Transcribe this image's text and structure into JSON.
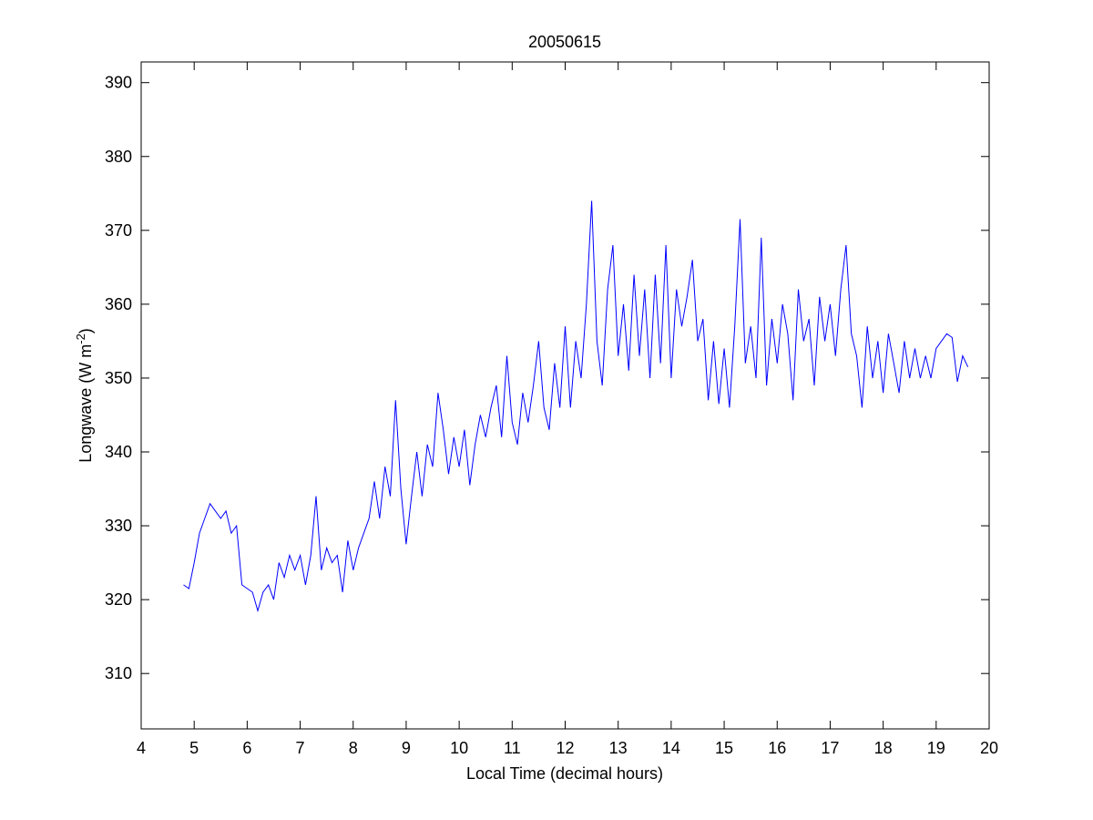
{
  "chart_data": {
    "type": "line",
    "title": "20050615",
    "xlabel": "Local Time (decimal hours)",
    "ylabel_main": "Longwave (W m",
    "ylabel_sup": "-2",
    "ylabel_close": ")",
    "xlim": [
      4,
      20
    ],
    "ylim": [
      302.5,
      392.8
    ],
    "xticks": [
      "4",
      "5",
      "6",
      "7",
      "8",
      "9",
      "10",
      "11",
      "12",
      "13",
      "14",
      "15",
      "16",
      "17",
      "18",
      "19",
      "20"
    ],
    "yticks": [
      "310",
      "320",
      "330",
      "340",
      "350",
      "360",
      "370",
      "380",
      "390"
    ],
    "grid": false,
    "series": [
      {
        "name": "longwave",
        "color": "#0000ff",
        "x_start": 4.8,
        "x_step": 0.1,
        "values": [
          322,
          321.5,
          325,
          329,
          331,
          333,
          332,
          331,
          332,
          329,
          330,
          322,
          321.5,
          321,
          318.5,
          321,
          322,
          320,
          325,
          323,
          326,
          324,
          326,
          322,
          326,
          334,
          324,
          327,
          325,
          326,
          321,
          328,
          324,
          327,
          329,
          331,
          336,
          331,
          338,
          334,
          347,
          335,
          327.5,
          334,
          340,
          334,
          341,
          338,
          348,
          343,
          337,
          342,
          338,
          343,
          335.5,
          341,
          345,
          342,
          346,
          349,
          342,
          353,
          344,
          341,
          348,
          344,
          349,
          355,
          346,
          343,
          352,
          346,
          357,
          346,
          355,
          350,
          360,
          374,
          355,
          349,
          362,
          368,
          353,
          360,
          351,
          364,
          353,
          362,
          350,
          364,
          352,
          368,
          350,
          362,
          357,
          361,
          366,
          355,
          358,
          347,
          355,
          346.5,
          354,
          346,
          357,
          371.5,
          352,
          357,
          350,
          369,
          349,
          358,
          352,
          360,
          356,
          347,
          362,
          355,
          358,
          349,
          361,
          355,
          360,
          353,
          362,
          368,
          356,
          353,
          346,
          357,
          350,
          355,
          348,
          356,
          352,
          348,
          355,
          350,
          354,
          350,
          353,
          350,
          354,
          355,
          356,
          355.5,
          349.5,
          353,
          351.5
        ]
      }
    ]
  }
}
